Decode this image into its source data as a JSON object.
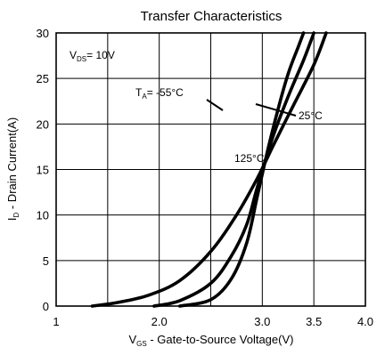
{
  "chart_data": {
    "type": "line",
    "title": "Transfer Characteristics",
    "xlabel": "V₉ₛ - Gate-to-Source Voltage(V)",
    "xlabel_parts": {
      "sym": "V",
      "sub": "GS",
      "text": " - Gate-to-Source Voltage(V)"
    },
    "ylabel": "I₉ - Drain Current(A)",
    "ylabel_parts": {
      "sym": "I",
      "sub": "D",
      "text": " - Drain Current(A)"
    },
    "xlim": [
      1.0,
      4.0
    ],
    "ylim": [
      0,
      30
    ],
    "grid": true,
    "x_ticks": [
      {
        "value": 1.0,
        "label": "1"
      },
      {
        "value": 2.0,
        "label": "2.0"
      },
      {
        "value": 3.0,
        "label": "3.0"
      },
      {
        "value": 3.5,
        "label": "3.5"
      },
      {
        "value": 4.0,
        "label": "4.0"
      }
    ],
    "x_grid": [
      1.0,
      1.5,
      2.0,
      2.5,
      3.0,
      3.5,
      4.0
    ],
    "y_ticks": [
      0,
      5,
      10,
      15,
      20,
      25,
      30
    ],
    "annotations": {
      "vds": {
        "sym": "V",
        "sub": "DS",
        "text": "= 10V"
      },
      "t_low": {
        "sym": "T",
        "sub": "A",
        "text": "= -55°C"
      },
      "t_mid": "25°C",
      "t_high": "125°C"
    },
    "series": [
      {
        "name": "-55°C",
        "x": [
          2.2,
          2.5,
          2.7,
          2.85,
          2.95,
          3.05,
          3.15,
          3.25,
          3.35,
          3.4
        ],
        "y": [
          0.0,
          0.7,
          3.0,
          7.0,
          12.0,
          17.0,
          21.5,
          25.5,
          28.5,
          30.0
        ]
      },
      {
        "name": "25°C",
        "x": [
          1.95,
          2.2,
          2.5,
          2.7,
          2.85,
          2.95,
          3.1,
          3.25,
          3.4,
          3.5
        ],
        "y": [
          0.0,
          0.6,
          2.5,
          5.5,
          9.0,
          13.0,
          18.5,
          23.0,
          27.0,
          30.0
        ]
      },
      {
        "name": "125°C",
        "x": [
          1.35,
          1.6,
          1.9,
          2.2,
          2.5,
          2.75,
          2.95,
          3.1,
          3.3,
          3.5,
          3.62
        ],
        "y": [
          0.0,
          0.4,
          1.2,
          2.8,
          6.0,
          10.0,
          14.0,
          17.5,
          22.0,
          26.5,
          30.0
        ]
      }
    ]
  }
}
